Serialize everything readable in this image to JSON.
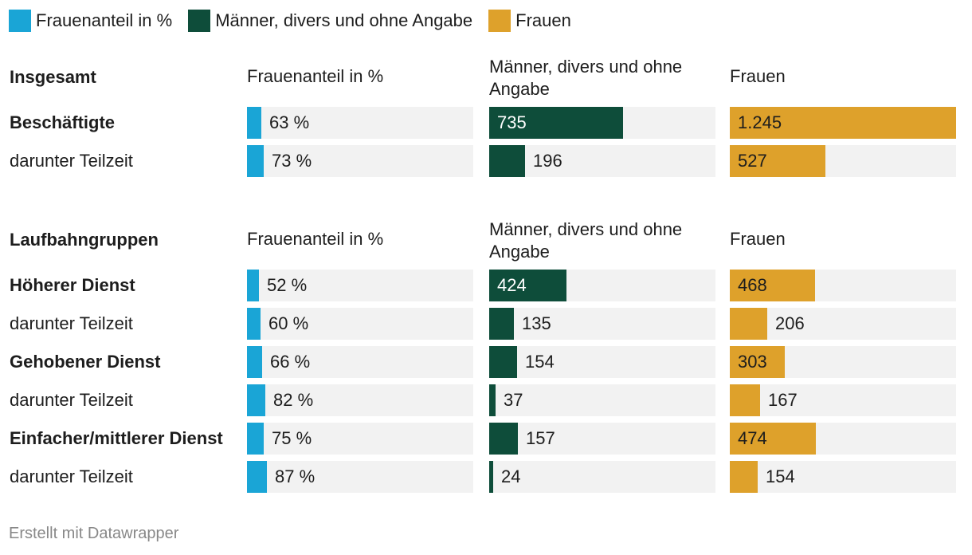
{
  "legend": [
    {
      "label": "Frauenanteil in %",
      "color": "#1aa5d6"
    },
    {
      "label": "Männer, divers und ohne Angabe",
      "color": "#0e4d3a"
    },
    {
      "label": "Frauen",
      "color": "#dea12b"
    }
  ],
  "footer": "Erstellt mit Datawrapper",
  "chart_data": {
    "type": "bar",
    "columns": [
      {
        "key": "share",
        "label": "Frauenanteil in %",
        "color": "#1aa5d6",
        "max": 1000,
        "unit": "%"
      },
      {
        "key": "men",
        "label": "Männer, divers und ohne Angabe",
        "color": "#0e4d3a",
        "max": 1245
      },
      {
        "key": "women",
        "label": "Frauen",
        "color": "#dea12b",
        "max": 1245
      }
    ],
    "groups": [
      {
        "title": "Insgesamt",
        "rows": [
          {
            "label": "Beschäftigte",
            "bold": true,
            "share": 63,
            "share_label": "63 %",
            "men": 735,
            "men_label": "735",
            "women": 1245,
            "women_label": "1.245"
          },
          {
            "label": "darunter Teilzeit",
            "bold": false,
            "share": 73,
            "share_label": "73 %",
            "men": 196,
            "men_label": "196",
            "women": 527,
            "women_label": "527"
          }
        ]
      },
      {
        "title": "Laufbahngruppen",
        "rows": [
          {
            "label": "Höherer Dienst",
            "bold": true,
            "share": 52,
            "share_label": "52 %",
            "men": 424,
            "men_label": "424",
            "women": 468,
            "women_label": "468"
          },
          {
            "label": "darunter Teilzeit",
            "bold": false,
            "share": 60,
            "share_label": "60 %",
            "men": 135,
            "men_label": "135",
            "women": 206,
            "women_label": "206"
          },
          {
            "label": "Gehobener Dienst",
            "bold": true,
            "share": 66,
            "share_label": "66 %",
            "men": 154,
            "men_label": "154",
            "women": 303,
            "women_label": "303"
          },
          {
            "label": "darunter Teilzeit",
            "bold": false,
            "share": 82,
            "share_label": "82 %",
            "men": 37,
            "men_label": "37",
            "women": 167,
            "women_label": "167"
          },
          {
            "label": "Einfacher/mittlerer Dienst",
            "bold": true,
            "share": 75,
            "share_label": "75 %",
            "men": 157,
            "men_label": "157",
            "women": 474,
            "women_label": "474"
          },
          {
            "label": "darunter Teilzeit",
            "bold": false,
            "share": 87,
            "share_label": "87 %",
            "men": 24,
            "men_label": "24",
            "women": 154,
            "women_label": "154"
          }
        ]
      }
    ]
  }
}
